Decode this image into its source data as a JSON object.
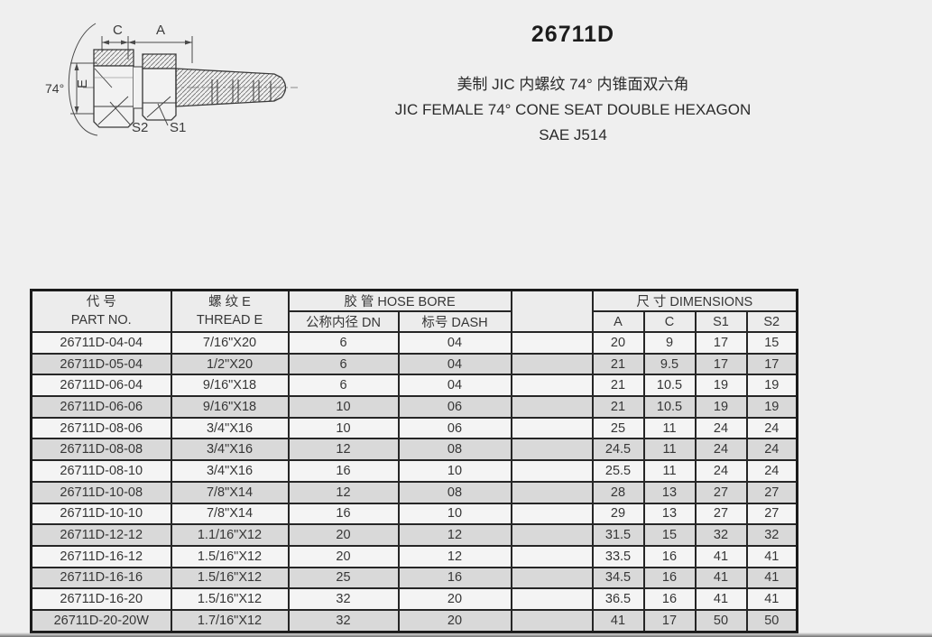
{
  "page": {
    "background": "#efefef"
  },
  "header": {
    "model": "26711D",
    "subtitle_cn": "美制 JIC 内螺纹 74° 内锥面双六角",
    "subtitle_en": "JIC FEMALE 74° CONE SEAT DOUBLE HEXAGON",
    "subtitle_std": "SAE J514"
  },
  "drawing": {
    "labels": {
      "dim_c": "C",
      "dim_a": "A",
      "dim_e": "E",
      "angle": "74°",
      "s2": "S2",
      "s1": "S1"
    }
  },
  "table": {
    "header": {
      "part_no_cn": "代  号",
      "part_no_en": "PART NO.",
      "thread_cn": "螺  纹 E",
      "thread_en": "THREAD E",
      "hose_bore": "胶  管 HOSE BORE",
      "dn": "公称内径 DN",
      "dash": "标号 DASH",
      "dimensions": "尺 寸  DIMENSIONS",
      "col_a": "A",
      "col_c": "C",
      "col_s1": "S1",
      "col_s2": "S2"
    },
    "rows": [
      [
        "26711D-04-04",
        "7/16\"X20",
        "6",
        "04",
        "",
        "20",
        "9",
        "17",
        "15"
      ],
      [
        "26711D-05-04",
        "1/2\"X20",
        "6",
        "04",
        "",
        "21",
        "9.5",
        "17",
        "17"
      ],
      [
        "26711D-06-04",
        "9/16\"X18",
        "6",
        "04",
        "",
        "21",
        "10.5",
        "19",
        "19"
      ],
      [
        "26711D-06-06",
        "9/16\"X18",
        "10",
        "06",
        "",
        "21",
        "10.5",
        "19",
        "19"
      ],
      [
        "26711D-08-06",
        "3/4\"X16",
        "10",
        "06",
        "",
        "25",
        "11",
        "24",
        "24"
      ],
      [
        "26711D-08-08",
        "3/4\"X16",
        "12",
        "08",
        "",
        "24.5",
        "11",
        "24",
        "24"
      ],
      [
        "26711D-08-10",
        "3/4\"X16",
        "16",
        "10",
        "",
        "25.5",
        "11",
        "24",
        "24"
      ],
      [
        "26711D-10-08",
        "7/8\"X14",
        "12",
        "08",
        "",
        "28",
        "13",
        "27",
        "27"
      ],
      [
        "26711D-10-10",
        "7/8\"X14",
        "16",
        "10",
        "",
        "29",
        "13",
        "27",
        "27"
      ],
      [
        "26711D-12-12",
        "1.1/16\"X12",
        "20",
        "12",
        "",
        "31.5",
        "15",
        "32",
        "32"
      ],
      [
        "26711D-16-12",
        "1.5/16\"X12",
        "20",
        "12",
        "",
        "33.5",
        "16",
        "41",
        "41"
      ],
      [
        "26711D-16-16",
        "1.5/16\"X12",
        "25",
        "16",
        "",
        "34.5",
        "16",
        "41",
        "41"
      ],
      [
        "26711D-16-20",
        "1.5/16\"X12",
        "32",
        "20",
        "",
        "36.5",
        "16",
        "41",
        "41"
      ],
      [
        "26711D-20-20W",
        "1.7/16\"X12",
        "32",
        "20",
        "",
        "41",
        "17",
        "50",
        "50"
      ]
    ]
  },
  "colors": {
    "row_shaded": "#d9d9d9",
    "row_plain": "#f4f4f4",
    "grid_line": "#262626",
    "text": "#363636"
  }
}
